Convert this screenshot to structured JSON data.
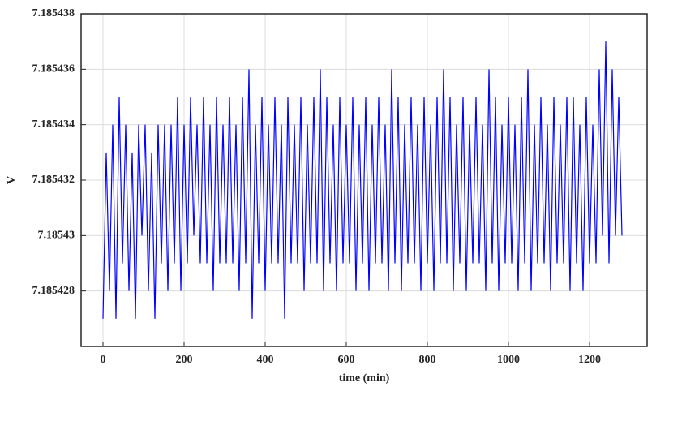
{
  "chart_data": {
    "type": "line",
    "x_label": "time (min)",
    "y_label": "V",
    "x": [
      0,
      8,
      16,
      24,
      32,
      40,
      48,
      56,
      64,
      72,
      80,
      88,
      96,
      104,
      112,
      120,
      128,
      136,
      144,
      152,
      160,
      168,
      176,
      184,
      192,
      200,
      208,
      216,
      224,
      232,
      240,
      248,
      256,
      264,
      272,
      280,
      288,
      296,
      304,
      312,
      320,
      328,
      336,
      344,
      352,
      360,
      368,
      376,
      384,
      392,
      400,
      408,
      416,
      424,
      432,
      440,
      448,
      456,
      464,
      472,
      480,
      488,
      496,
      504,
      512,
      520,
      528,
      536,
      544,
      552,
      560,
      568,
      576,
      584,
      592,
      600,
      608,
      616,
      624,
      632,
      640,
      648,
      656,
      664,
      672,
      680,
      688,
      696,
      704,
      712,
      720,
      728,
      736,
      744,
      752,
      760,
      768,
      776,
      784,
      792,
      800,
      808,
      816,
      824,
      832,
      840,
      848,
      856,
      864,
      872,
      880,
      888,
      896,
      904,
      912,
      920,
      928,
      936,
      944,
      952,
      960,
      968,
      976,
      984,
      992,
      1000,
      1008,
      1016,
      1024,
      1032,
      1040,
      1048,
      1056,
      1064,
      1072,
      1080,
      1088,
      1096,
      1104,
      1112,
      1120,
      1128,
      1136,
      1144,
      1152,
      1160,
      1168,
      1176,
      1184,
      1192,
      1200,
      1208,
      1216,
      1224,
      1232,
      1240,
      1248,
      1256,
      1264,
      1272,
      1280
    ],
    "series": [
      {
        "name": "V",
        "color": "#0000ff",
        "values": [
          7.185427,
          7.185433,
          7.185428,
          7.185434,
          7.185427,
          7.185435,
          7.185429,
          7.185434,
          7.185428,
          7.185433,
          7.185427,
          7.185434,
          7.18543,
          7.185434,
          7.185428,
          7.185433,
          7.185427,
          7.185434,
          7.185429,
          7.185434,
          7.185428,
          7.185434,
          7.185429,
          7.185435,
          7.185428,
          7.185434,
          7.185429,
          7.185435,
          7.18543,
          7.185434,
          7.185429,
          7.185435,
          7.185429,
          7.185434,
          7.185428,
          7.185435,
          7.185429,
          7.185434,
          7.185429,
          7.185435,
          7.185429,
          7.185434,
          7.185428,
          7.185435,
          7.185429,
          7.185436,
          7.185427,
          7.185434,
          7.185429,
          7.185435,
          7.185428,
          7.185434,
          7.185429,
          7.185435,
          7.185429,
          7.185434,
          7.185427,
          7.185435,
          7.185429,
          7.185434,
          7.185429,
          7.185435,
          7.185428,
          7.185434,
          7.185429,
          7.185435,
          7.185429,
          7.185436,
          7.185428,
          7.185435,
          7.185429,
          7.185434,
          7.185428,
          7.185435,
          7.185429,
          7.185434,
          7.185429,
          7.185435,
          7.185428,
          7.185434,
          7.185429,
          7.185435,
          7.185428,
          7.185434,
          7.185429,
          7.185435,
          7.185429,
          7.185434,
          7.185428,
          7.185436,
          7.185429,
          7.185435,
          7.185428,
          7.185434,
          7.185429,
          7.185435,
          7.185429,
          7.185434,
          7.185428,
          7.185435,
          7.185429,
          7.185434,
          7.185428,
          7.185435,
          7.185429,
          7.185436,
          7.185429,
          7.185435,
          7.185428,
          7.185434,
          7.185429,
          7.185435,
          7.185428,
          7.185434,
          7.185429,
          7.185435,
          7.185429,
          7.185434,
          7.185428,
          7.185436,
          7.185429,
          7.185435,
          7.185428,
          7.185434,
          7.185429,
          7.185435,
          7.185429,
          7.185434,
          7.185428,
          7.185435,
          7.185429,
          7.185436,
          7.185428,
          7.185434,
          7.185429,
          7.185435,
          7.185429,
          7.185434,
          7.185428,
          7.185435,
          7.185429,
          7.185434,
          7.185429,
          7.185435,
          7.185428,
          7.185435,
          7.185429,
          7.185434,
          7.185428,
          7.185435,
          7.185429,
          7.185434,
          7.185429,
          7.185436,
          7.18543,
          7.185437,
          7.185429,
          7.185436,
          7.18543,
          7.185435,
          7.18543
        ]
      }
    ],
    "xlim": [
      -54,
      1342
    ],
    "xticks": [
      0,
      200,
      400,
      600,
      800,
      1000,
      1200
    ],
    "ylim": [
      7.185426,
      7.185438
    ],
    "yticks": [
      7.185428,
      7.18543,
      7.185432,
      7.185434,
      7.185436,
      7.185438
    ],
    "grid": true
  }
}
